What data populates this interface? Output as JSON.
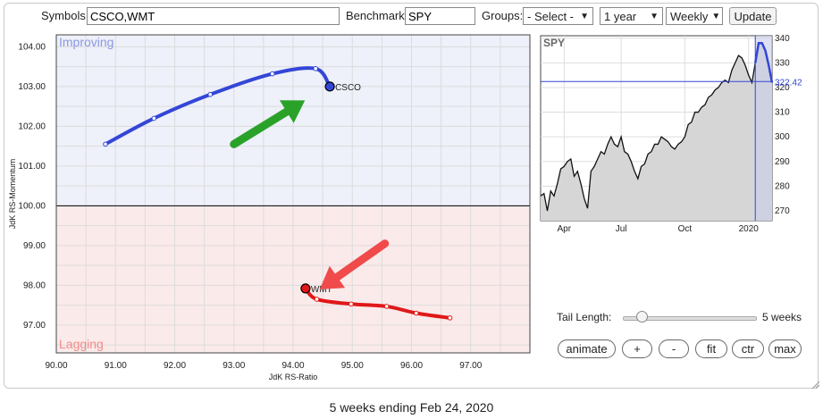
{
  "toolbar": {
    "symbols_label": "Symbols:",
    "symbols_value": "CSCO,WMT",
    "benchmark_label": "Benchmark:",
    "benchmark_value": "SPY",
    "groups_label": "Groups:",
    "groups_value": "- Select -",
    "period_value": "1 year",
    "frequency_value": "Weekly",
    "update_label": "Update"
  },
  "controls": {
    "tail_length_label": "Tail Length:",
    "tail_length_value": "5 weeks",
    "tail_length_level": 0.15,
    "buttons": [
      "animate",
      "+",
      "-",
      "fit",
      "ctr",
      "max"
    ]
  },
  "caption": "5 weeks ending Feb 24, 2020",
  "chart_data": [
    {
      "type": "scatter",
      "subtype": "relative-rotation-graph",
      "xlabel": "JdK RS-Ratio",
      "ylabel": "JdK RS-Momentum",
      "xlim": [
        90.0,
        98.0
      ],
      "ylim": [
        96.3,
        104.3
      ],
      "xticks": [
        "90.00",
        "91.00",
        "92.00",
        "93.00",
        "94.00",
        "95.00",
        "96.00",
        "97.00"
      ],
      "yticks": [
        "97.00",
        "98.00",
        "99.00",
        "100.00",
        "101.00",
        "102.00",
        "103.00",
        "104.00"
      ],
      "center": [
        100,
        100
      ],
      "grid": true,
      "quadrants": {
        "top_left": {
          "name": "Improving",
          "color": "#eef0fa",
          "label_color": "#8a98e0"
        },
        "bottom_left": {
          "name": "Lagging",
          "color": "#fbeaea",
          "label_color": "#f08a8a"
        }
      },
      "series": [
        {
          "name": "CSCO",
          "color": "#3346d6",
          "x": [
            90.83,
            91.65,
            92.6,
            93.65,
            94.38,
            94.62
          ],
          "y": [
            101.55,
            102.2,
            102.8,
            103.32,
            103.45,
            103.0
          ]
        },
        {
          "name": "WMT",
          "color": "#e01818",
          "x": [
            96.65,
            96.08,
            95.58,
            94.98,
            94.4,
            94.21
          ],
          "y": [
            97.18,
            97.3,
            97.47,
            97.53,
            97.65,
            97.92
          ]
        }
      ],
      "annotations": [
        {
          "type": "arrow",
          "color": "#2aa22a",
          "from": [
            93.0,
            101.55
          ],
          "to": [
            94.2,
            102.65
          ]
        },
        {
          "type": "arrow",
          "color": "#f04a4a",
          "from": [
            95.55,
            99.05
          ],
          "to": [
            94.45,
            97.9
          ]
        }
      ]
    },
    {
      "type": "area",
      "title": "SPY",
      "x_ticks": [
        "Apr",
        "Jul",
        "Oct",
        "2020"
      ],
      "y_ticks": [
        "270",
        "280",
        "290",
        "300",
        "310",
        "320",
        "330",
        "340"
      ],
      "ylim": [
        266,
        341
      ],
      "current_value": "322.42",
      "values": [
        276,
        277,
        270,
        278,
        276,
        281,
        287,
        288,
        290,
        291,
        284,
        286,
        281,
        275,
        271,
        286,
        288,
        291,
        294,
        293,
        297,
        300,
        297,
        296,
        300,
        294,
        293,
        290,
        286,
        283,
        288,
        289,
        293,
        294,
        297,
        297,
        300,
        299,
        298,
        296,
        295,
        297,
        298,
        300,
        305,
        306,
        310,
        310,
        312,
        313,
        316,
        317,
        319,
        320,
        322,
        323,
        322,
        327,
        330,
        333,
        332,
        329,
        325,
        322,
        330,
        338,
        338,
        335,
        329,
        322
      ]
    }
  ]
}
